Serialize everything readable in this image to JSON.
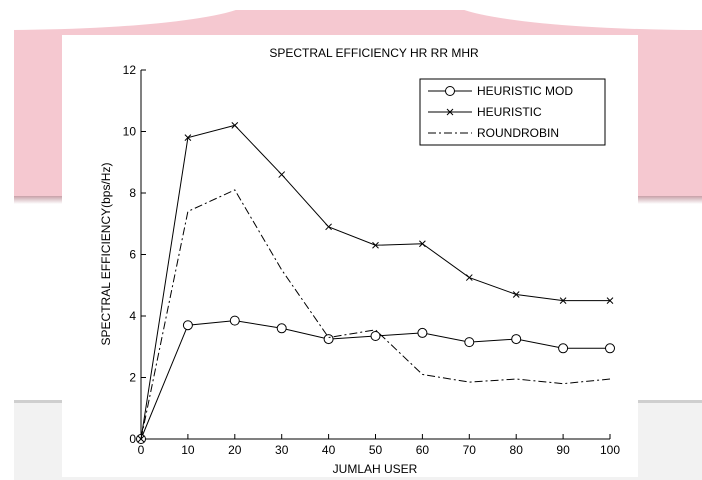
{
  "chart_data": {
    "type": "line",
    "title": "SPECTRAL EFFICIENCY HR RR MHR",
    "xlabel": "JUMLAH USER",
    "ylabel": "SPECTRAL EFFICIENCY(bps/Hz)",
    "x": [
      0,
      10,
      20,
      30,
      40,
      50,
      60,
      70,
      80,
      90,
      100
    ],
    "xlim": [
      0,
      100
    ],
    "ylim": [
      0,
      12
    ],
    "xticks": [
      "0",
      "10",
      "20",
      "30",
      "40",
      "50",
      "60",
      "70",
      "80",
      "90",
      "100"
    ],
    "yticks": [
      "0",
      "2",
      "4",
      "6",
      "8",
      "10",
      "12"
    ],
    "grid": false,
    "legend_position": "top-right",
    "series": [
      {
        "name": "HEURISTIC MOD",
        "marker": "circle",
        "line_style": "solid",
        "color": "#000000",
        "values": [
          0,
          3.7,
          3.85,
          3.6,
          3.25,
          3.35,
          3.45,
          3.15,
          3.25,
          2.95,
          2.95
        ]
      },
      {
        "name": "HEURISTIC",
        "marker": "x",
        "line_style": "solid",
        "color": "#000000",
        "values": [
          0,
          9.8,
          10.2,
          8.6,
          6.9,
          6.3,
          6.35,
          5.25,
          4.7,
          4.5,
          4.5
        ]
      },
      {
        "name": "ROUNDROBIN",
        "marker": "none",
        "line_style": "dashdot",
        "color": "#000000",
        "values": [
          0,
          7.4,
          8.1,
          5.5,
          3.3,
          3.55,
          2.1,
          1.85,
          1.95,
          1.8,
          1.95
        ]
      }
    ]
  }
}
